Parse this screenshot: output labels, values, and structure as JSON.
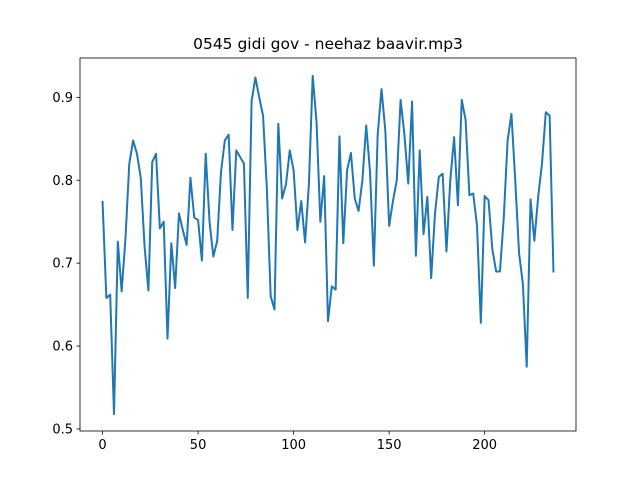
{
  "chart_data": {
    "type": "line",
    "title": "0545 gidi gov - neehaz baavir.mp3",
    "x": [
      0,
      2,
      4,
      6,
      8,
      10,
      12,
      14,
      16,
      18,
      20,
      22,
      24,
      26,
      28,
      30,
      32,
      34,
      36,
      38,
      40,
      42,
      44,
      46,
      48,
      50,
      52,
      54,
      56,
      58,
      60,
      62,
      64,
      66,
      68,
      70,
      72,
      74,
      76,
      78,
      80,
      82,
      84,
      86,
      88,
      90,
      92,
      94,
      96,
      98,
      100,
      102,
      104,
      106,
      108,
      110,
      112,
      114,
      116,
      118,
      120,
      122,
      124,
      126,
      128,
      130,
      132,
      134,
      136,
      138,
      140,
      142,
      144,
      146,
      148,
      150,
      152,
      154,
      156,
      158,
      160,
      162,
      164,
      166,
      168,
      170,
      172,
      174,
      176,
      178,
      180,
      182,
      184,
      186,
      188,
      190,
      192,
      194,
      196,
      198,
      200,
      202,
      204,
      206,
      208,
      210,
      212,
      214,
      216,
      218,
      220,
      222,
      224,
      226,
      228,
      230,
      232,
      234,
      236
    ],
    "values": [
      0.774,
      0.658,
      0.662,
      0.518,
      0.726,
      0.666,
      0.73,
      0.82,
      0.848,
      0.832,
      0.803,
      0.72,
      0.667,
      0.822,
      0.832,
      0.742,
      0.75,
      0.609,
      0.724,
      0.67,
      0.76,
      0.74,
      0.722,
      0.803,
      0.755,
      0.752,
      0.703,
      0.832,
      0.75,
      0.708,
      0.727,
      0.81,
      0.848,
      0.855,
      0.74,
      0.836,
      0.828,
      0.82,
      0.658,
      0.895,
      0.924,
      0.9,
      0.878,
      0.79,
      0.66,
      0.644,
      0.868,
      0.778,
      0.795,
      0.836,
      0.812,
      0.74,
      0.775,
      0.725,
      0.795,
      0.926,
      0.87,
      0.75,
      0.805,
      0.63,
      0.672,
      0.668,
      0.853,
      0.724,
      0.812,
      0.833,
      0.778,
      0.763,
      0.8,
      0.866,
      0.81,
      0.697,
      0.855,
      0.91,
      0.86,
      0.745,
      0.775,
      0.8,
      0.897,
      0.855,
      0.796,
      0.895,
      0.709,
      0.836,
      0.735,
      0.78,
      0.682,
      0.76,
      0.804,
      0.808,
      0.714,
      0.8,
      0.852,
      0.77,
      0.897,
      0.873,
      0.782,
      0.784,
      0.745,
      0.628,
      0.781,
      0.776,
      0.717,
      0.69,
      0.69,
      0.755,
      0.848,
      0.88,
      0.8,
      0.712,
      0.675,
      0.575,
      0.777,
      0.727,
      0.78,
      0.82,
      0.882,
      0.878,
      0.69
    ],
    "color": "#1f77b4",
    "xlim": [
      -11.8,
      247.8
    ],
    "xticks": [
      0,
      50,
      100,
      150,
      200
    ],
    "ylim": [
      0.4975,
      0.9475
    ],
    "yticks": [
      0.5,
      0.6,
      0.7,
      0.8,
      0.9
    ],
    "grid": false
  }
}
